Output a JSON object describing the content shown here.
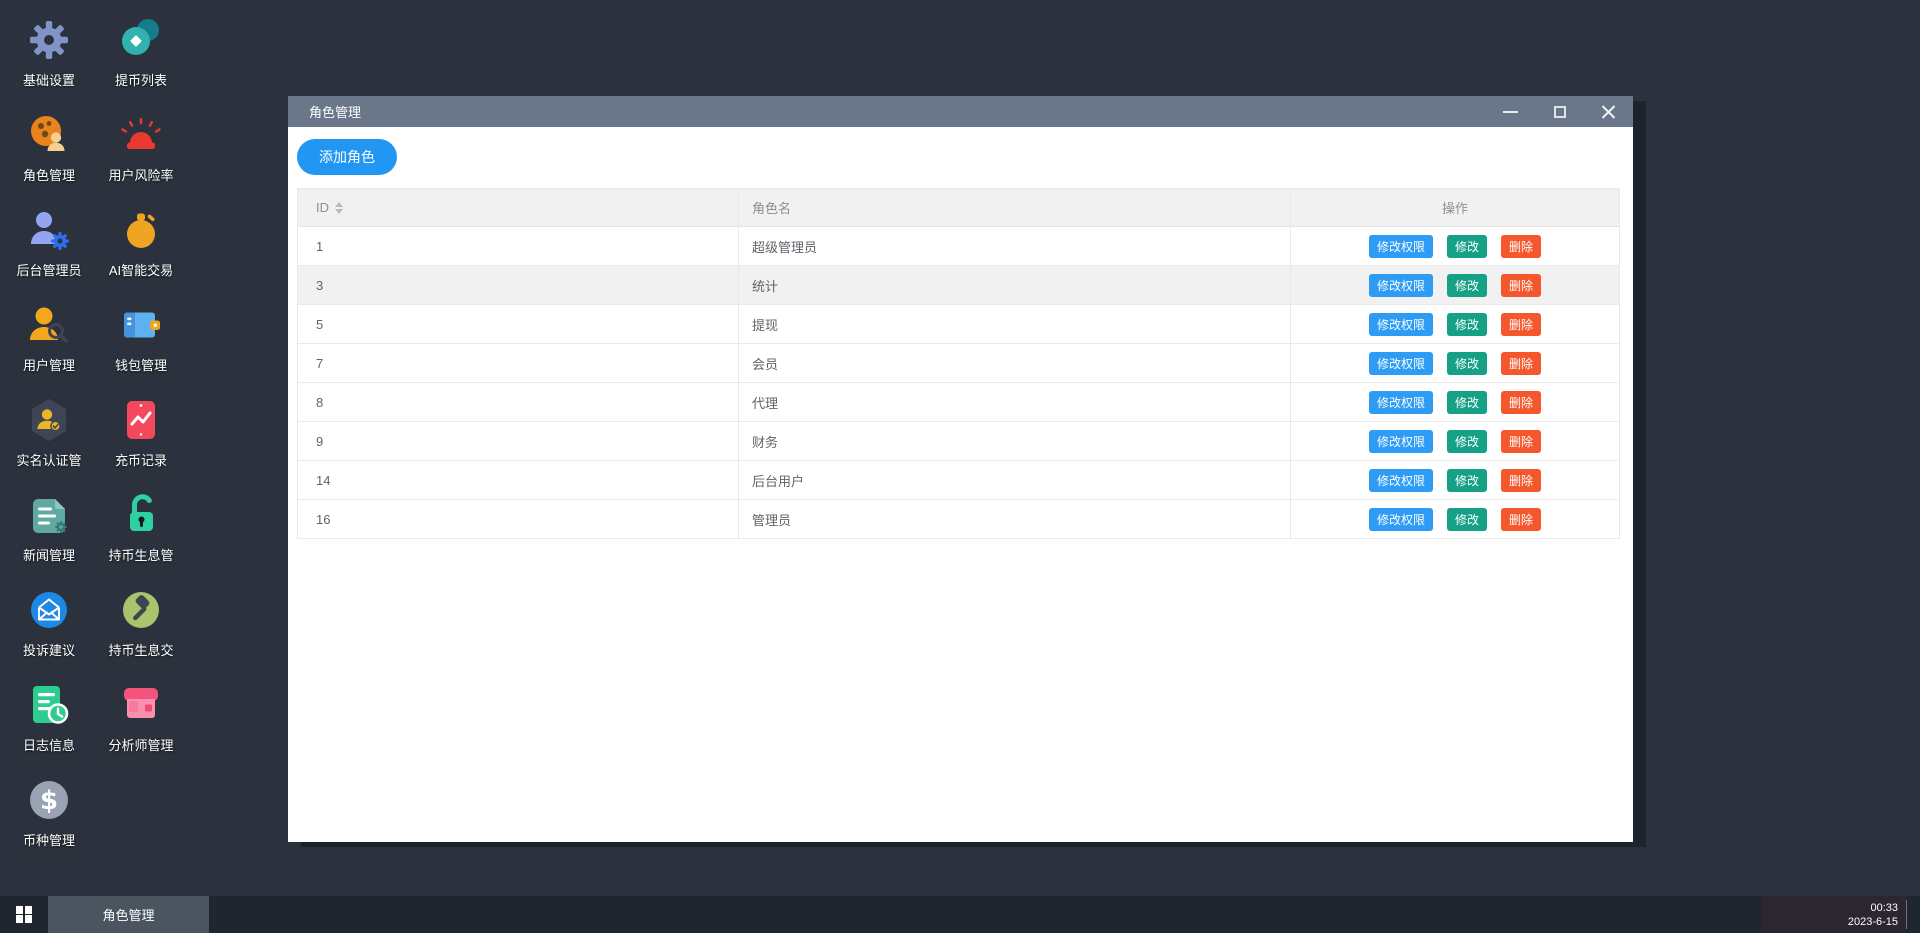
{
  "desktop": {
    "col1": [
      {
        "label": "基础设置",
        "icon": "gear-icon"
      },
      {
        "label": "角色管理",
        "icon": "role-icon"
      },
      {
        "label": "后台管理员",
        "icon": "admin-user-icon"
      },
      {
        "label": "用户管理",
        "icon": "user-search-icon"
      },
      {
        "label": "实名认证管",
        "icon": "id-verify-icon"
      },
      {
        "label": "新闻管理",
        "icon": "news-icon"
      },
      {
        "label": "投诉建议",
        "icon": "mail-icon"
      },
      {
        "label": "日志信息",
        "icon": "log-clock-icon"
      },
      {
        "label": "币种管理",
        "icon": "coin-icon"
      }
    ],
    "col2": [
      {
        "label": "提币列表",
        "icon": "withdraw-list-icon"
      },
      {
        "label": "用户风险率",
        "icon": "alarm-icon"
      },
      {
        "label": "AI智能交易",
        "icon": "stopwatch-icon"
      },
      {
        "label": "钱包管理",
        "icon": "wallet-icon"
      },
      {
        "label": "充币记录",
        "icon": "chart-card-icon"
      },
      {
        "label": "持币生息管",
        "icon": "unlock-icon"
      },
      {
        "label": "持币生息交",
        "icon": "gavel-icon"
      },
      {
        "label": "分析师管理",
        "icon": "shop-icon"
      }
    ]
  },
  "window": {
    "title": "角色管理",
    "add_role_label": "添加角色",
    "table": {
      "headers": {
        "id": "ID",
        "name": "角色名",
        "actions": "操作"
      },
      "action_labels": {
        "perm": "修改权限",
        "edit": "修改",
        "del": "删除"
      },
      "rows": [
        {
          "id": "1",
          "name": "超级管理员",
          "highlight": false
        },
        {
          "id": "3",
          "name": "统计",
          "highlight": true
        },
        {
          "id": "5",
          "name": "提现",
          "highlight": false
        },
        {
          "id": "7",
          "name": "会员",
          "highlight": false
        },
        {
          "id": "8",
          "name": "代理",
          "highlight": false
        },
        {
          "id": "9",
          "name": "财务",
          "highlight": false
        },
        {
          "id": "14",
          "name": "后台用户",
          "highlight": false
        },
        {
          "id": "16",
          "name": "管理员",
          "highlight": false
        }
      ]
    }
  },
  "taskbar": {
    "task_label": "角色管理",
    "clock_time": "00:33",
    "clock_date": "2023-6-15"
  },
  "colors": {
    "desktop_bg": "#2b323d",
    "titlebar": "#6a7689",
    "accent_blue": "#2196f3",
    "btn_perm": "#2e9cf4",
    "btn_edit": "#16a085",
    "btn_del": "#f4572b",
    "taskbar_bg": "#20262f",
    "task_active": "#4a5560"
  }
}
